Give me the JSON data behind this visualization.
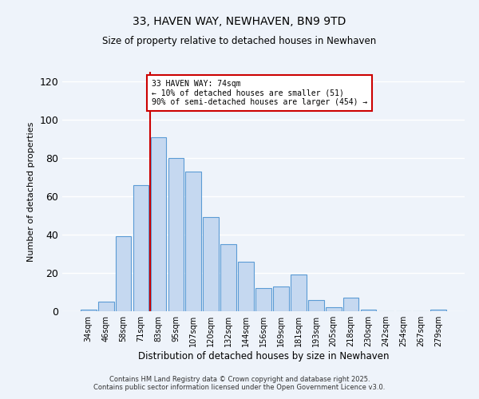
{
  "title": "33, HAVEN WAY, NEWHAVEN, BN9 9TD",
  "subtitle": "Size of property relative to detached houses in Newhaven",
  "xlabel": "Distribution of detached houses by size in Newhaven",
  "ylabel": "Number of detached properties",
  "bar_labels": [
    "34sqm",
    "46sqm",
    "58sqm",
    "71sqm",
    "83sqm",
    "95sqm",
    "107sqm",
    "120sqm",
    "132sqm",
    "144sqm",
    "156sqm",
    "169sqm",
    "181sqm",
    "193sqm",
    "205sqm",
    "218sqm",
    "230sqm",
    "242sqm",
    "254sqm",
    "267sqm",
    "279sqm"
  ],
  "bar_values": [
    1,
    5,
    39,
    66,
    91,
    80,
    73,
    49,
    35,
    26,
    12,
    13,
    19,
    6,
    2,
    7,
    1,
    0,
    0,
    0,
    1
  ],
  "bar_color": "#c5d8f0",
  "bar_edgecolor": "#5b9bd5",
  "vline_x": 3.5,
  "vline_color": "#cc0000",
  "annotation_title": "33 HAVEN WAY: 74sqm",
  "annotation_line1": "← 10% of detached houses are smaller (51)",
  "annotation_line2": "90% of semi-detached houses are larger (454) →",
  "annotation_box_edgecolor": "#cc0000",
  "ylim": [
    0,
    125
  ],
  "yticks": [
    0,
    20,
    40,
    60,
    80,
    100,
    120
  ],
  "footnote1": "Contains HM Land Registry data © Crown copyright and database right 2025.",
  "footnote2": "Contains public sector information licensed under the Open Government Licence v3.0.",
  "bg_color": "#eef3fa",
  "plot_bg_color": "#eef3fa"
}
